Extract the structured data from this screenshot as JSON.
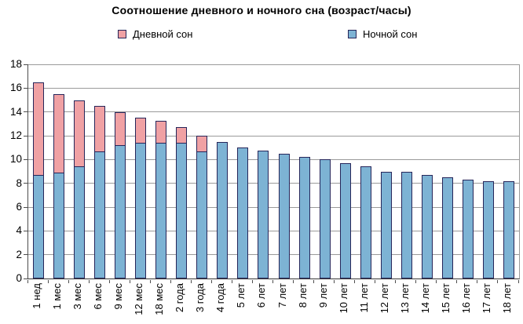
{
  "chart_data": {
    "type": "bar",
    "stacked": true,
    "title": "Соотношение дневного и ночного сна (возраст/часы)",
    "xlabel": "",
    "ylabel": "",
    "categories": [
      "1 нед",
      "1 мес",
      "3 мес",
      "6 мес",
      "9 мес",
      "12 мес",
      "18 мес",
      "2 года",
      "3 года",
      "4 года",
      "5 лет",
      "6 лет",
      "7 лет",
      "8 лет",
      "9 лет",
      "10 лет",
      "11 лет",
      "12 лет",
      "13 лет",
      "14 лет",
      "15 лет",
      "16 лет",
      "17 лет",
      "18 лет"
    ],
    "series": [
      {
        "name": "Дневной сон",
        "role": "day-sleep-top-segment",
        "color": "#f0a1a4",
        "values": [
          7.75,
          6.5,
          5.5,
          3.75,
          2.75,
          2.0,
          1.75,
          1.25,
          1.25,
          0,
          0,
          0,
          0,
          0,
          0,
          0,
          0,
          0,
          0,
          0,
          0,
          0,
          0,
          0
        ]
      },
      {
        "name": "Ночной сон",
        "role": "night-sleep-bottom-segment",
        "color": "#7db3d4",
        "values": [
          8.75,
          9.0,
          9.5,
          10.75,
          11.25,
          11.5,
          11.5,
          11.5,
          10.75,
          11.5,
          11.0,
          10.75,
          10.5,
          10.25,
          10.0,
          9.7,
          9.4,
          9.0,
          9.0,
          8.7,
          8.5,
          8.3,
          8.2,
          8.2
        ]
      }
    ],
    "stack_order_bottom_to_top": [
      "Ночной сон",
      "Дневной сон"
    ],
    "ylim": [
      0,
      18
    ],
    "y_ticks": [
      0,
      2,
      4,
      6,
      8,
      10,
      12,
      14,
      16,
      18
    ],
    "grid": "horizontal",
    "legend_position": "top",
    "bar_outline_color": "#26265a",
    "gridline_color": "#9a9a9a",
    "axis_color": "#4d4d4d",
    "background_color": "#ffffff"
  }
}
